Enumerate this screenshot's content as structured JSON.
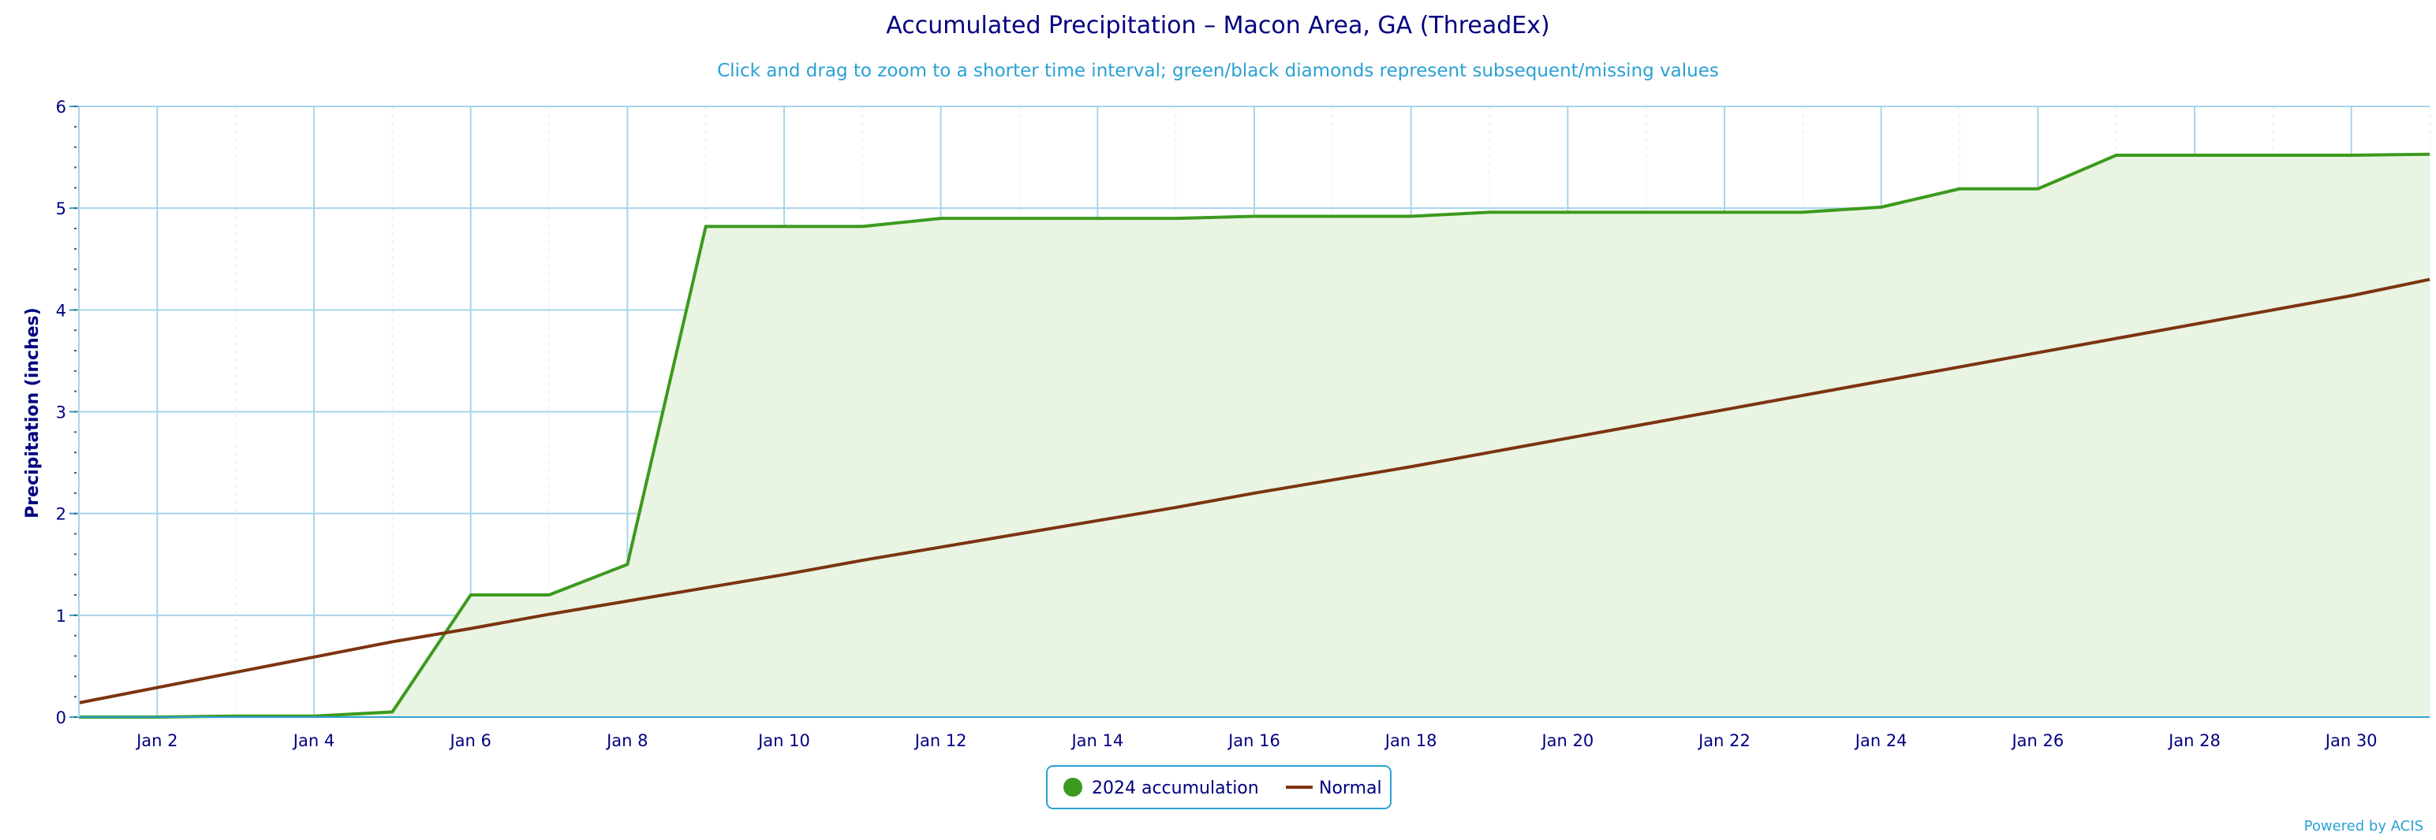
{
  "chart_data": {
    "type": "area",
    "title": "Accumulated Precipitation – Macon Area, GA (ThreadEx)",
    "subtitle": "Click and drag to zoom to a shorter time interval; green/black diamonds represent subsequent/missing values",
    "ylabel": "Precipitation (inches)",
    "xlabel": "",
    "ylim": [
      0,
      6
    ],
    "xlim": [
      1,
      31
    ],
    "y_ticks": [
      "0",
      "1",
      "2",
      "3",
      "4",
      "5",
      "6"
    ],
    "x_tick_labels": [
      "Jan 2",
      "Jan 4",
      "Jan 6",
      "Jan 8",
      "Jan 10",
      "Jan 12",
      "Jan 14",
      "Jan 16",
      "Jan 18",
      "Jan 20",
      "Jan 22",
      "Jan 24",
      "Jan 26",
      "Jan 28",
      "Jan 30"
    ],
    "x_tick_days": [
      2,
      4,
      6,
      8,
      10,
      12,
      14,
      16,
      18,
      20,
      22,
      24,
      26,
      28,
      30
    ],
    "grid": true,
    "legend_position": "bottom-center",
    "series": [
      {
        "name": "2024 accumulation",
        "color": "#3c9a1e",
        "fill": "#e9f4e3",
        "marker": "circle",
        "x": [
          1,
          2,
          3,
          4,
          5,
          6,
          7,
          8,
          9,
          10,
          11,
          12,
          13,
          14,
          15,
          16,
          17,
          18,
          19,
          20,
          21,
          22,
          23,
          24,
          25,
          26,
          27,
          28,
          29,
          30,
          31
        ],
        "values": [
          0.0,
          0.0,
          0.01,
          0.01,
          0.05,
          1.2,
          1.2,
          1.5,
          4.82,
          4.82,
          4.82,
          4.9,
          4.9,
          4.9,
          4.9,
          4.92,
          4.92,
          4.92,
          4.96,
          4.96,
          4.96,
          4.96,
          4.96,
          5.01,
          5.19,
          5.19,
          5.52,
          5.52,
          5.52,
          5.52,
          5.53
        ]
      },
      {
        "name": "Normal",
        "color": "#7c3410",
        "marker": "line",
        "x": [
          1,
          2,
          3,
          4,
          5,
          6,
          7,
          8,
          9,
          10,
          11,
          12,
          13,
          14,
          15,
          16,
          17,
          18,
          19,
          20,
          21,
          22,
          23,
          24,
          25,
          26,
          27,
          28,
          29,
          30,
          31
        ],
        "values": [
          0.14,
          0.29,
          0.44,
          0.59,
          0.74,
          0.87,
          1.01,
          1.14,
          1.27,
          1.4,
          1.54,
          1.67,
          1.8,
          1.93,
          2.06,
          2.2,
          2.33,
          2.46,
          2.6,
          2.74,
          2.88,
          3.02,
          3.16,
          3.3,
          3.44,
          3.58,
          3.72,
          3.86,
          4.0,
          4.14,
          4.3
        ]
      }
    ],
    "credit": "Powered by ACIS"
  }
}
